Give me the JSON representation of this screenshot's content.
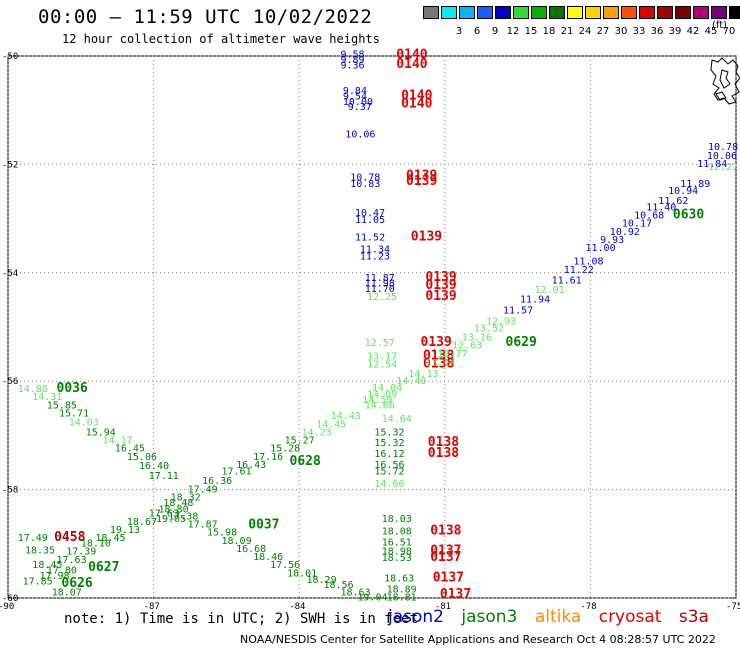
{
  "header": {
    "title": "00:00 – 11:59 UTC 10/02/2022",
    "subtitle": "12 hour collection of altimeter wave heights"
  },
  "legend": {
    "unit": "(ft)",
    "items": [
      {
        "color": "#777777",
        "label": ""
      },
      {
        "color": "#00f0f0",
        "label": "3"
      },
      {
        "color": "#00b4ff",
        "label": "6"
      },
      {
        "color": "#1e5aff",
        "label": "9"
      },
      {
        "color": "#0000c8",
        "label": "12"
      },
      {
        "color": "#32dc32",
        "label": "15"
      },
      {
        "color": "#00b400",
        "label": "18"
      },
      {
        "color": "#007800",
        "label": "21"
      },
      {
        "color": "#ffff00",
        "label": "24"
      },
      {
        "color": "#ffd200",
        "label": "27"
      },
      {
        "color": "#ffa000",
        "label": "30"
      },
      {
        "color": "#ff5000",
        "label": "33"
      },
      {
        "color": "#dc0000",
        "label": "36"
      },
      {
        "color": "#a00000",
        "label": "39"
      },
      {
        "color": "#780000",
        "label": "42"
      },
      {
        "color": "#b40078",
        "label": "45"
      },
      {
        "color": "#780078",
        "label": "70"
      },
      {
        "color": "#000000",
        "label": ""
      }
    ]
  },
  "colors": {
    "jason2": "#0000c8",
    "jason3": "#008000",
    "altika": "#ff8c00",
    "cryosat": "#e00000",
    "s3a": "#b00000",
    "light_green": "#5ee65e",
    "grid": "#808080"
  },
  "map": {
    "lon_range": [
      -90,
      -75
    ],
    "lat_range": [
      -60,
      -50
    ],
    "lat_ticks": [
      "-50",
      "-52",
      "-54",
      "-56",
      "-58",
      "-60"
    ],
    "lon_ticks": [
      "-90",
      "-87",
      "-84",
      "-81",
      "-78",
      "-75"
    ]
  },
  "annotations": [
    {
      "text": "9.58",
      "lon": -83.15,
      "lat": -50.03,
      "color": "blue"
    },
    {
      "text": "9.89",
      "lon": -83.15,
      "lat": -50.13,
      "color": "blue"
    },
    {
      "text": "9.36",
      "lon": -83.15,
      "lat": -50.23,
      "color": "blue"
    },
    {
      "text": "0140",
      "lon": -82.0,
      "lat": -50.05,
      "color": "red"
    },
    {
      "text": "0140",
      "lon": -82.0,
      "lat": -50.22,
      "color": "red"
    },
    {
      "text": "9.84",
      "lon": -83.1,
      "lat": -50.7,
      "color": "blue"
    },
    {
      "text": "9.54",
      "lon": -83.1,
      "lat": -50.8,
      "color": "blue"
    },
    {
      "text": "10.00",
      "lon": -83.1,
      "lat": -50.9,
      "color": "blue"
    },
    {
      "text": "9.37",
      "lon": -83.0,
      "lat": -51.0,
      "color": "blue"
    },
    {
      "text": "0140",
      "lon": -81.9,
      "lat": -50.8,
      "color": "red"
    },
    {
      "text": "0140",
      "lon": -81.9,
      "lat": -50.95,
      "color": "red"
    },
    {
      "text": "10.06",
      "lon": -83.05,
      "lat": -51.5,
      "color": "blue"
    },
    {
      "text": "10.78",
      "lon": -82.95,
      "lat": -52.3,
      "color": "blue"
    },
    {
      "text": "10.83",
      "lon": -82.95,
      "lat": -52.42,
      "color": "blue"
    },
    {
      "text": "0139",
      "lon": -81.8,
      "lat": -52.28,
      "color": "red"
    },
    {
      "text": "0139",
      "lon": -81.8,
      "lat": -52.38,
      "color": "red"
    },
    {
      "text": "10.47",
      "lon": -82.85,
      "lat": -52.95,
      "color": "blue"
    },
    {
      "text": "11.05",
      "lon": -82.85,
      "lat": -53.08,
      "color": "blue"
    },
    {
      "text": "11.52",
      "lon": -82.85,
      "lat": -53.4,
      "color": "blue"
    },
    {
      "text": "0139",
      "lon": -81.7,
      "lat": -53.4,
      "color": "red"
    },
    {
      "text": "11.34",
      "lon": -82.75,
      "lat": -53.63,
      "color": "blue"
    },
    {
      "text": "11.23",
      "lon": -82.75,
      "lat": -53.75,
      "color": "blue"
    },
    {
      "text": "11.87",
      "lon": -82.65,
      "lat": -54.15,
      "color": "blue"
    },
    {
      "text": "11.98",
      "lon": -82.65,
      "lat": -54.25,
      "color": "blue"
    },
    {
      "text": "11.70",
      "lon": -82.65,
      "lat": -54.35,
      "color": "blue"
    },
    {
      "text": "12.25",
      "lon": -82.6,
      "lat": -54.5,
      "color": "light"
    },
    {
      "text": "0139",
      "lon": -81.4,
      "lat": -54.15,
      "color": "red"
    },
    {
      "text": "0139",
      "lon": -81.4,
      "lat": -54.3,
      "color": "red"
    },
    {
      "text": "0139",
      "lon": -81.4,
      "lat": -54.5,
      "color": "red"
    },
    {
      "text": "12.57",
      "lon": -82.65,
      "lat": -55.35,
      "color": "light"
    },
    {
      "text": "0139",
      "lon": -81.5,
      "lat": -55.35,
      "color": "red"
    },
    {
      "text": "13.17",
      "lon": -82.6,
      "lat": -55.6,
      "color": "light"
    },
    {
      "text": "12.54",
      "lon": -82.6,
      "lat": -55.75,
      "color": "light"
    },
    {
      "text": "0138",
      "lon": -81.45,
      "lat": -55.6,
      "color": "red"
    },
    {
      "text": "0138",
      "lon": -81.45,
      "lat": -55.75,
      "color": "red"
    },
    {
      "text": "15.32",
      "lon": -82.45,
      "lat": -57.0,
      "color": "green"
    },
    {
      "text": "15.32",
      "lon": -82.45,
      "lat": -57.2,
      "color": "green"
    },
    {
      "text": "0138",
      "lon": -81.35,
      "lat": -57.2,
      "color": "red"
    },
    {
      "text": "16.12",
      "lon": -82.45,
      "lat": -57.4,
      "color": "green"
    },
    {
      "text": "0138",
      "lon": -81.35,
      "lat": -57.4,
      "color": "red"
    },
    {
      "text": "16.56",
      "lon": -82.45,
      "lat": -57.6,
      "color": "green"
    },
    {
      "text": "15.72",
      "lon": -82.45,
      "lat": -57.72,
      "color": "green"
    },
    {
      "text": "14.66",
      "lon": -82.45,
      "lat": -57.95,
      "color": "light"
    },
    {
      "text": "18.03",
      "lon": -82.3,
      "lat": -58.6,
      "color": "green"
    },
    {
      "text": "18.08",
      "lon": -82.3,
      "lat": -58.83,
      "color": "green"
    },
    {
      "text": "0138",
      "lon": -81.3,
      "lat": -58.83,
      "color": "red"
    },
    {
      "text": "16.51",
      "lon": -82.3,
      "lat": -59.03,
      "color": "green"
    },
    {
      "text": "18.98",
      "lon": -82.3,
      "lat": -59.2,
      "color": "green"
    },
    {
      "text": "0137",
      "lon": -81.3,
      "lat": -59.2,
      "color": "red"
    },
    {
      "text": "18.53",
      "lon": -82.3,
      "lat": -59.32,
      "color": "green"
    },
    {
      "text": "0137",
      "lon": -81.3,
      "lat": -59.32,
      "color": "red"
    },
    {
      "text": "18.63",
      "lon": -82.25,
      "lat": -59.7,
      "color": "green"
    },
    {
      "text": "0137",
      "lon": -81.25,
      "lat": -59.7,
      "color": "red"
    },
    {
      "text": "18.89",
      "lon": -82.2,
      "lat": -59.9,
      "color": "green"
    },
    {
      "text": "18.81",
      "lon": -82.2,
      "lat": -60.05,
      "color": "green"
    },
    {
      "text": "0137",
      "lon": -81.1,
      "lat": -60.0,
      "color": "red"
    },
    {
      "text": "10.78",
      "lon": -75.45,
      "lat": -51.73,
      "color": "blue"
    },
    {
      "text": "10.06",
      "lon": -75.6,
      "lat": -51.9,
      "color": "blue"
    },
    {
      "text": "11.84",
      "lon": -75.8,
      "lat": -52.05,
      "color": "blue"
    },
    {
      "text": "12.27",
      "lon": -75.2,
      "lat": -52.1,
      "color": "light"
    },
    {
      "text": "11.89",
      "lon": -76.15,
      "lat": -52.42,
      "color": "blue"
    },
    {
      "text": "10.94",
      "lon": -76.4,
      "lat": -52.55,
      "color": "blue"
    },
    {
      "text": "11.62",
      "lon": -76.6,
      "lat": -52.73,
      "color": "blue"
    },
    {
      "text": "11.40",
      "lon": -76.85,
      "lat": -52.85,
      "color": "blue"
    },
    {
      "text": "0630",
      "lon": -76.3,
      "lat": -53.0,
      "color": "green"
    },
    {
      "text": "10.68",
      "lon": -77.1,
      "lat": -53.0,
      "color": "blue"
    },
    {
      "text": "10.17",
      "lon": -77.35,
      "lat": -53.15,
      "color": "blue"
    },
    {
      "text": "10.92",
      "lon": -77.6,
      "lat": -53.3,
      "color": "blue"
    },
    {
      "text": "9.93",
      "lon": -77.8,
      "lat": -53.45,
      "color": "blue"
    },
    {
      "text": "11.00",
      "lon": -78.1,
      "lat": -53.6,
      "color": "blue"
    },
    {
      "text": "11.08",
      "lon": -78.35,
      "lat": -53.85,
      "color": "blue"
    },
    {
      "text": "11.22",
      "lon": -78.55,
      "lat": -54.0,
      "color": "blue"
    },
    {
      "text": "11.61",
      "lon": -78.8,
      "lat": -54.2,
      "color": "blue"
    },
    {
      "text": "12.01",
      "lon": -79.15,
      "lat": -54.37,
      "color": "light"
    },
    {
      "text": "11.94",
      "lon": -79.45,
      "lat": -54.55,
      "color": "blue"
    },
    {
      "text": "11.57",
      "lon": -79.8,
      "lat": -54.75,
      "color": "blue"
    },
    {
      "text": "12.93",
      "lon": -80.15,
      "lat": -54.95,
      "color": "light"
    },
    {
      "text": "13.52",
      "lon": -80.4,
      "lat": -55.08,
      "color": "light"
    },
    {
      "text": "13.16",
      "lon": -80.65,
      "lat": -55.25,
      "color": "light"
    },
    {
      "text": "0629",
      "lon": -79.75,
      "lat": -55.35,
      "color": "green"
    },
    {
      "text": "12.63",
      "lon": -80.85,
      "lat": -55.4,
      "color": "light"
    },
    {
      "text": "12.77",
      "lon": -81.15,
      "lat": -55.55,
      "color": "light"
    },
    {
      "text": "13.14",
      "lon": -81.4,
      "lat": -55.72,
      "color": "light"
    },
    {
      "text": "14.13",
      "lon": -81.75,
      "lat": -55.92,
      "color": "light"
    },
    {
      "text": "14.48",
      "lon": -82.0,
      "lat": -56.05,
      "color": "light"
    },
    {
      "text": "14.04",
      "lon": -82.5,
      "lat": -56.18,
      "color": "light"
    },
    {
      "text": "14.09",
      "lon": -82.6,
      "lat": -56.3,
      "color": "light"
    },
    {
      "text": "14.59",
      "lon": -82.7,
      "lat": -56.4,
      "color": "light"
    },
    {
      "text": "14.66",
      "lon": -82.65,
      "lat": -56.5,
      "color": "light"
    },
    {
      "text": "14.64",
      "lon": -82.3,
      "lat": -56.75,
      "color": "light"
    },
    {
      "text": "14.43",
      "lon": -83.35,
      "lat": -56.7,
      "color": "light"
    },
    {
      "text": "14.45",
      "lon": -83.65,
      "lat": -56.85,
      "color": "light"
    },
    {
      "text": "14.23",
      "lon": -83.95,
      "lat": -57.0,
      "color": "light"
    },
    {
      "text": "15.27",
      "lon": -84.3,
      "lat": -57.15,
      "color": "green"
    },
    {
      "text": "15.28",
      "lon": -84.6,
      "lat": -57.3,
      "color": "green"
    },
    {
      "text": "17.16",
      "lon": -84.95,
      "lat": -57.45,
      "color": "green"
    },
    {
      "text": "16.43",
      "lon": -85.3,
      "lat": -57.6,
      "color": "green"
    },
    {
      "text": "0628",
      "lon": -84.2,
      "lat": -57.55,
      "color": "green"
    },
    {
      "text": "17.61",
      "lon": -85.6,
      "lat": -57.72,
      "color": "green"
    },
    {
      "text": "16.36",
      "lon": -86.0,
      "lat": -57.9,
      "color": "green"
    },
    {
      "text": "17.49",
      "lon": -86.3,
      "lat": -58.05,
      "color": "green"
    },
    {
      "text": "18.32",
      "lon": -86.65,
      "lat": -58.2,
      "color": "green"
    },
    {
      "text": "18.48",
      "lon": -86.8,
      "lat": -58.3,
      "color": "green"
    },
    {
      "text": "18.80",
      "lon": -86.9,
      "lat": -58.42,
      "color": "green"
    },
    {
      "text": "17.38",
      "lon": -86.7,
      "lat": -58.55,
      "color": "green"
    },
    {
      "text": "19.05",
      "lon": -86.95,
      "lat": -58.6,
      "color": "green"
    },
    {
      "text": "14.88",
      "lon": -89.8,
      "lat": -56.2,
      "color": "light"
    },
    {
      "text": "0036",
      "lon": -89.0,
      "lat": -56.2,
      "color": "green"
    },
    {
      "text": "14.31",
      "lon": -89.5,
      "lat": -56.35,
      "color": "light"
    },
    {
      "text": "15.85",
      "lon": -89.2,
      "lat": -56.5,
      "color": "green"
    },
    {
      "text": "15.71",
      "lon": -88.95,
      "lat": -56.65,
      "color": "green"
    },
    {
      "text": "14.03",
      "lon": -88.75,
      "lat": -56.82,
      "color": "light"
    },
    {
      "text": "15.94",
      "lon": -88.4,
      "lat": -57.0,
      "color": "green"
    },
    {
      "text": "14.17",
      "lon": -88.05,
      "lat": -57.15,
      "color": "light"
    },
    {
      "text": "16.45",
      "lon": -87.8,
      "lat": -57.3,
      "color": "green"
    },
    {
      "text": "15.06",
      "lon": -87.55,
      "lat": -57.45,
      "color": "green"
    },
    {
      "text": "16.40",
      "lon": -87.3,
      "lat": -57.62,
      "color": "green"
    },
    {
      "text": "17.11",
      "lon": -87.1,
      "lat": -57.8,
      "color": "green"
    },
    {
      "text": "17.87",
      "lon": -86.3,
      "lat": -58.7,
      "color": "green"
    },
    {
      "text": "15.98",
      "lon": -85.9,
      "lat": -58.85,
      "color": "green"
    },
    {
      "text": "0037",
      "lon": -85.05,
      "lat": -58.72,
      "color": "green"
    },
    {
      "text": "18.09",
      "lon": -85.6,
      "lat": -59.0,
      "color": "green"
    },
    {
      "text": "16.68",
      "lon": -85.3,
      "lat": -59.15,
      "color": "green"
    },
    {
      "text": "18.46",
      "lon": -84.95,
      "lat": -59.3,
      "color": "green"
    },
    {
      "text": "17.56",
      "lon": -84.6,
      "lat": -59.45,
      "color": "green"
    },
    {
      "text": "18.01",
      "lon": -84.25,
      "lat": -59.6,
      "color": "green"
    },
    {
      "text": "18.29",
      "lon": -83.85,
      "lat": -59.72,
      "color": "green"
    },
    {
      "text": "18.56",
      "lon": -83.5,
      "lat": -59.82,
      "color": "green"
    },
    {
      "text": "18.63",
      "lon": -83.15,
      "lat": -59.95,
      "color": "green"
    },
    {
      "text": "19.04",
      "lon": -82.8,
      "lat": -60.05,
      "color": "green"
    },
    {
      "text": "17.49",
      "lon": -89.8,
      "lat": -58.95,
      "color": "green"
    },
    {
      "text": "0458",
      "lon": -89.05,
      "lat": -58.95,
      "color": "darkred"
    },
    {
      "text": "18.35",
      "lon": -89.65,
      "lat": -59.18,
      "color": "green"
    },
    {
      "text": "18.10",
      "lon": -88.5,
      "lat": -59.05,
      "color": "green"
    },
    {
      "text": "17.39",
      "lon": -88.8,
      "lat": -59.2,
      "color": "green"
    },
    {
      "text": "18.45",
      "lon": -88.2,
      "lat": -58.95,
      "color": "green"
    },
    {
      "text": "19.13",
      "lon": -87.9,
      "lat": -58.8,
      "color": "green"
    },
    {
      "text": "18.67",
      "lon": -87.55,
      "lat": -58.65,
      "color": "green"
    },
    {
      "text": "17.63",
      "lon": -87.1,
      "lat": -58.5,
      "color": "green"
    },
    {
      "text": "17.63",
      "lon": -89.0,
      "lat": -59.35,
      "color": "green"
    },
    {
      "text": "18.45",
      "lon": -89.5,
      "lat": -59.45,
      "color": "green"
    },
    {
      "text": "17.80",
      "lon": -89.2,
      "lat": -59.55,
      "color": "green"
    },
    {
      "text": "0627",
      "lon": -88.35,
      "lat": -59.5,
      "color": "green"
    },
    {
      "text": "17.98",
      "lon": -89.35,
      "lat": -59.65,
      "color": "green"
    },
    {
      "text": "17.85",
      "lon": -89.7,
      "lat": -59.75,
      "color": "green"
    },
    {
      "text": "0626",
      "lon": -88.9,
      "lat": -59.8,
      "color": "green"
    },
    {
      "text": "18.07",
      "lon": -89.1,
      "lat": -59.95,
      "color": "green"
    }
  ],
  "footer": {
    "note": "note: 1) Time is in UTC; 2) SWH is in feet",
    "missions": [
      "jason2",
      "jason3",
      "altika",
      "cryosat",
      "s3a"
    ],
    "credit": "NOAA/NESDIS Center for Satellite Applications and Research   Oct  4 08:28:57 UTC 2022"
  }
}
